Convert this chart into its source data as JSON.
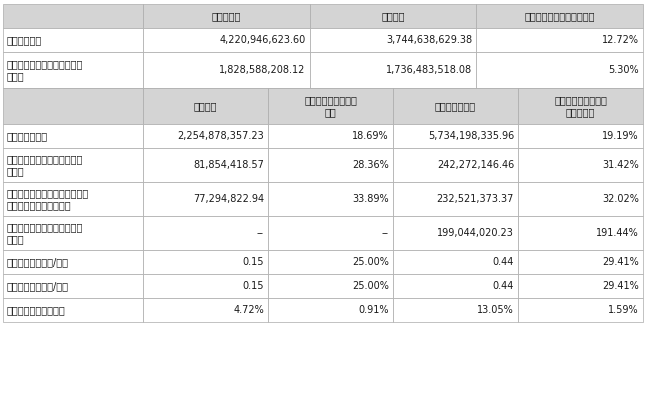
{
  "header1_cols": [
    "",
    "本报告期末",
    "上年度末",
    "本报告期末比上年度末增减"
  ],
  "section1_rows": [
    [
      "总资产（元）",
      "4,220,946,623.60",
      "3,744,638,629.38",
      "12.72%"
    ],
    [
      "归属于上市公司股东的净资产\n（元）",
      "1,828,588,208.12",
      "1,736,483,518.08",
      "5.30%"
    ]
  ],
  "header2_cols": [
    "",
    "本报告期",
    "本报告期比上年同期\n增减",
    "年初至报告期末",
    "年初至报告期末比上\n年同期增减"
  ],
  "section2_rows": [
    [
      "营业收入（元）",
      "2,254,878,357.23",
      "18.69%",
      "5,734,198,335.96",
      "19.19%"
    ],
    [
      "归属于上市公司股东的净利润\n（元）",
      "81,854,418.57",
      "28.36%",
      "242,272,146.46",
      "31.42%"
    ],
    [
      "归属于上市公司股东的扣除非经\n常性损益的净利润（元）",
      "77,294,822.94",
      "33.89%",
      "232,521,373.37",
      "32.02%"
    ],
    [
      "经营活动产生的现金流量净额\n（元）",
      "--",
      "--",
      "199,044,020.23",
      "191.44%"
    ],
    [
      "基本每股收益（元/股）",
      "0.15",
      "25.00%",
      "0.44",
      "29.41%"
    ],
    [
      "稼释每股收益（元/股）",
      "0.15",
      "25.00%",
      "0.44",
      "29.41%"
    ],
    [
      "加权平均净资产收益率",
      "4.72%",
      "0.91%",
      "13.05%",
      "1.59%"
    ]
  ],
  "header_bg": "#d4d4d4",
  "row_bg_white": "#ffffff",
  "row_bg_gray": "#ebebeb",
  "border_color": "#aaaaaa",
  "text_color": "#1a1a1a",
  "font_size": 7.0,
  "header_font_size": 7.0,
  "fig_w": 6.46,
  "fig_h": 4.09,
  "dpi": 100
}
